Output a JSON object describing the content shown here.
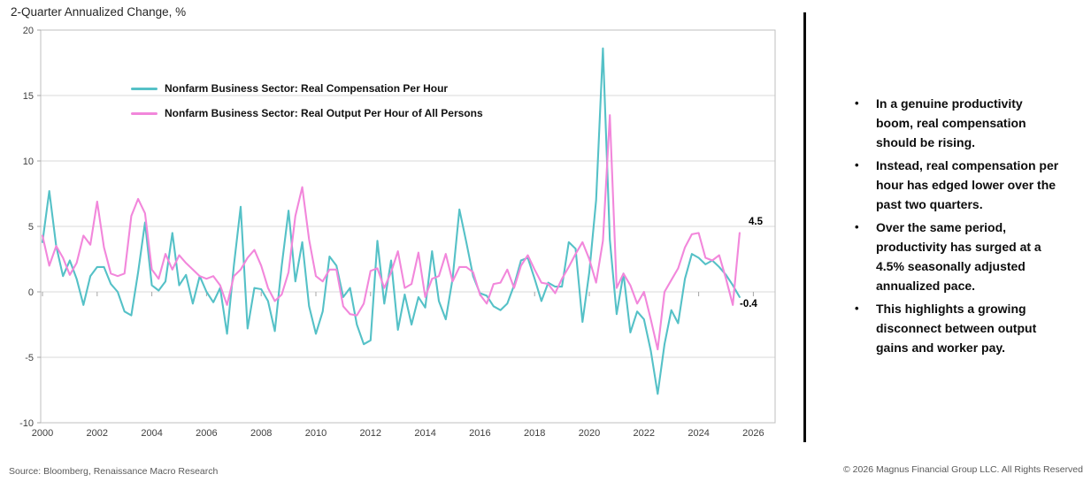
{
  "page": {
    "source": "Source: Bloomberg, Renaissance Macro Research",
    "copyright": "© 2026 Magnus Financial Group LLC. All Rights Reserved"
  },
  "bullets": [
    "In a genuine productivity boom, real compensation should be rising.",
    "Instead, real compensation per hour has edged lower over the past two quarters.",
    "Over the same period, productivity has surged at a 4.5% seasonally adjusted annualized pace.",
    "This highlights a growing disconnect between output gains and worker pay."
  ],
  "chart_data": {
    "type": "line",
    "title": "2-Quarter Annualized Change, %",
    "xlabel": "",
    "ylabel": "",
    "xlim": [
      2000,
      2026.8
    ],
    "ylim": [
      -10,
      20
    ],
    "yticks": [
      20,
      15,
      10,
      5,
      0,
      -5,
      -10
    ],
    "xticks": [
      2000,
      2002,
      2004,
      2006,
      2008,
      2010,
      2012,
      2014,
      2016,
      2018,
      2020,
      2022,
      2024,
      2026
    ],
    "grid": true,
    "legend_position": "top-left-inside",
    "x": [
      2000,
      2000.25,
      2000.5,
      2000.75,
      2001,
      2001.25,
      2001.5,
      2001.75,
      2002,
      2002.25,
      2002.5,
      2002.75,
      2003,
      2003.25,
      2003.5,
      2003.75,
      2004,
      2004.25,
      2004.5,
      2004.75,
      2005,
      2005.25,
      2005.5,
      2005.75,
      2006,
      2006.25,
      2006.5,
      2006.75,
      2007,
      2007.25,
      2007.5,
      2007.75,
      2008,
      2008.25,
      2008.5,
      2008.75,
      2009,
      2009.25,
      2009.5,
      2009.75,
      2010,
      2010.25,
      2010.5,
      2010.75,
      2011,
      2011.25,
      2011.5,
      2011.75,
      2012,
      2012.25,
      2012.5,
      2012.75,
      2013,
      2013.25,
      2013.5,
      2013.75,
      2014,
      2014.25,
      2014.5,
      2014.75,
      2015,
      2015.25,
      2015.5,
      2015.75,
      2016,
      2016.25,
      2016.5,
      2016.75,
      2017,
      2017.25,
      2017.5,
      2017.75,
      2018,
      2018.25,
      2018.5,
      2018.75,
      2019,
      2019.25,
      2019.5,
      2019.75,
      2020,
      2020.25,
      2020.5,
      2020.75,
      2021,
      2021.25,
      2021.5,
      2021.75,
      2022,
      2022.25,
      2022.5,
      2022.75,
      2023,
      2023.25,
      2023.5,
      2023.75,
      2024,
      2024.25,
      2024.5,
      2024.75,
      2025,
      2025.25,
      2025.5
    ],
    "series": [
      {
        "name": "Nonfarm Business Sector: Real Compensation Per Hour",
        "color": "#55C1C7",
        "last_value_label": "-0.4",
        "values": [
          3.8,
          7.7,
          3.5,
          1.2,
          2.4,
          1.0,
          -1.0,
          1.2,
          1.9,
          1.9,
          0.6,
          0.0,
          -1.5,
          -1.8,
          1.5,
          5.3,
          0.5,
          0.1,
          0.8,
          4.5,
          0.5,
          1.3,
          -0.9,
          1.2,
          0.0,
          -0.8,
          0.3,
          -3.2,
          2.0,
          6.5,
          -2.8,
          0.3,
          0.2,
          -0.7,
          -3.0,
          2.0,
          6.2,
          0.8,
          3.8,
          -1.1,
          -3.2,
          -1.5,
          2.7,
          2.0,
          -0.4,
          0.3,
          -2.5,
          -4.0,
          -3.7,
          3.9,
          -0.9,
          2.4,
          -2.9,
          -0.2,
          -2.5,
          -0.4,
          -1.2,
          3.1,
          -0.7,
          -2.1,
          1.0,
          6.3,
          3.8,
          1.2,
          -0.1,
          -0.3,
          -1.1,
          -1.4,
          -0.9,
          0.5,
          2.4,
          2.6,
          1.0,
          -0.7,
          0.7,
          0.4,
          0.4,
          3.8,
          3.3,
          -2.3,
          1.5,
          7.0,
          18.6,
          4.0,
          -1.7,
          1.4,
          -3.1,
          -1.5,
          -2.1,
          -4.5,
          -7.8,
          -4.0,
          -1.4,
          -2.4,
          1.0,
          2.9,
          2.6,
          2.1,
          2.4,
          1.9,
          1.3,
          0.5,
          -0.4
        ]
      },
      {
        "name": "Nonfarm Business Sector: Real Output Per Hour of All Persons",
        "color": "#F287DB",
        "last_value_label": "4.5",
        "values": [
          4.3,
          2.0,
          3.5,
          2.6,
          1.3,
          2.2,
          4.3,
          3.6,
          6.9,
          3.4,
          1.4,
          1.2,
          1.4,
          5.8,
          7.1,
          6.0,
          1.7,
          1.0,
          2.9,
          1.7,
          2.8,
          2.2,
          1.7,
          1.2,
          1.0,
          1.2,
          0.5,
          -1.0,
          1.2,
          1.7,
          2.6,
          3.2,
          2.0,
          0.3,
          -0.7,
          -0.2,
          1.5,
          5.8,
          8.0,
          4.0,
          1.2,
          0.8,
          1.7,
          1.7,
          -1.1,
          -1.7,
          -1.8,
          -0.9,
          1.6,
          1.8,
          0.3,
          1.5,
          3.1,
          0.3,
          0.6,
          3.0,
          -0.4,
          1.0,
          1.2,
          2.9,
          0.8,
          1.9,
          1.9,
          1.5,
          -0.2,
          -0.9,
          0.6,
          0.7,
          1.7,
          0.3,
          2.0,
          2.8,
          1.7,
          0.7,
          0.6,
          -0.1,
          1.0,
          1.9,
          2.9,
          3.8,
          2.5,
          0.7,
          3.9,
          13.5,
          0.3,
          1.4,
          0.5,
          -0.9,
          0.0,
          -2.1,
          -4.4,
          0.0,
          0.9,
          1.8,
          3.4,
          4.4,
          4.5,
          2.6,
          2.4,
          2.8,
          1.0,
          -1.0,
          4.5
        ]
      }
    ],
    "end_labels": [
      {
        "series": "Nonfarm Business Sector: Real Output Per Hour of All Persons",
        "text": "4.5"
      },
      {
        "series": "Nonfarm Business Sector: Real Compensation Per Hour",
        "text": "-0.4"
      }
    ]
  }
}
